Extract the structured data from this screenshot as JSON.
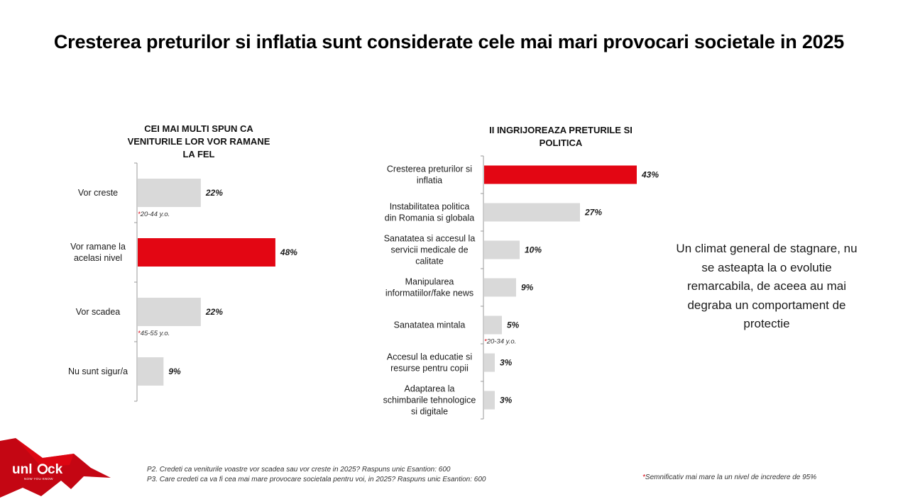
{
  "title": "Cresterea preturilor si inflatia sunt considerate cele mai mari provocari societale in 2025",
  "colors": {
    "highlight": "#e30613",
    "default": "#d9d9d9",
    "note_star": "#d9000d"
  },
  "chart_data": [
    {
      "type": "bar",
      "orientation": "horizontal",
      "title_lines": [
        "CEI MAI MULTI SPUN CA",
        "VENITURILE LOR VOR RAMANE",
        "LA FEL"
      ],
      "xlim": [
        0,
        50
      ],
      "categories": [
        [
          "Vor creste"
        ],
        [
          "Vor ramane la",
          "acelasi nivel"
        ],
        [
          "Vor scadea"
        ],
        [
          "Nu sunt sigur/a"
        ]
      ],
      "values": [
        22,
        48,
        22,
        9
      ],
      "value_labels": [
        "22%",
        "48%",
        "22%",
        "9%"
      ],
      "highlighted": [
        false,
        true,
        false,
        false
      ],
      "notes": [
        "*20-44 y.o.",
        "",
        "*45-55 y.o.",
        ""
      ]
    },
    {
      "type": "bar",
      "orientation": "horizontal",
      "title_lines": [
        "II INGRIJOREAZA PRETURILE SI",
        "POLITICA"
      ],
      "xlim": [
        0,
        50
      ],
      "categories": [
        [
          "Cresterea preturilor si",
          "inflatia"
        ],
        [
          "Instabilitatea politica",
          "din Romania si globala"
        ],
        [
          "Sanatatea si accesul la",
          "servicii medicale de",
          "calitate"
        ],
        [
          "Manipularea",
          "informatiilor/fake news"
        ],
        [
          "Sanatatea mintala"
        ],
        [
          "Accesul la educatie si",
          "resurse pentru copii"
        ],
        [
          "Adaptarea la",
          "schimbarile tehnologice",
          "si digitale"
        ]
      ],
      "values": [
        43,
        27,
        10,
        9,
        5,
        3,
        3
      ],
      "value_labels": [
        "43%",
        "27%",
        "10%",
        "9%",
        "5%",
        "3%",
        "3%"
      ],
      "highlighted": [
        true,
        false,
        false,
        false,
        false,
        false,
        false
      ],
      "notes": [
        "",
        "",
        "",
        "",
        "*20-34 y.o.",
        "",
        ""
      ]
    }
  ],
  "note": "Un climat general de stagnare, nu se asteapta la o evolutie remarcabila, de aceea au mai degraba un comportament de protectie",
  "logo": {
    "name": "unlock",
    "tagline": "NOW YOU KNOW"
  },
  "footer": {
    "source_lines": [
      "P2. Credeti ca veniturile voastre vor scadea sau vor creste in 2025? Raspuns unic  Esantion: 600",
      "P3. Care credeti ca va fi cea mai mare provocare societala pentru voi, in 2025? Raspuns unic  Esantion: 600"
    ],
    "significance_star": "*",
    "significance": "Semnificativ mai mare la un nivel de incredere de 95%"
  }
}
